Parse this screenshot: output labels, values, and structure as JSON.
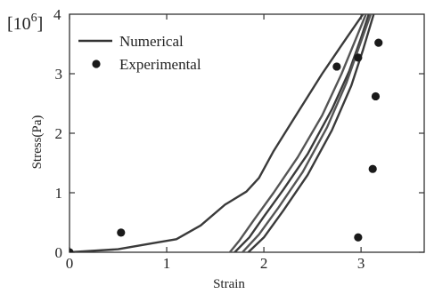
{
  "chart_data": {
    "type": "scatter",
    "title": "",
    "xlabel": "Strain",
    "ylabel": "Stress(Pa)",
    "y_multiplier_label": "[10^6]",
    "y_extra_tick_label": "4",
    "xlim": [
      0,
      3.65
    ],
    "ylim": [
      0,
      4
    ],
    "x_ticks": [
      0,
      1,
      2,
      3
    ],
    "y_ticks": [
      0,
      1,
      2,
      3
    ],
    "grid": false,
    "legend_position": "top-left",
    "legend": [
      {
        "label": "Numerical",
        "marker": "line"
      },
      {
        "label": "Experimental",
        "marker": "dot"
      }
    ],
    "series": [
      {
        "name": "Numerical",
        "style": "line",
        "curves": [
          [
            [
              0,
              0
            ],
            [
              0.5,
              0.05
            ],
            [
              0.85,
              0.15
            ],
            [
              1.1,
              0.22
            ],
            [
              1.35,
              0.45
            ],
            [
              1.6,
              0.8
            ],
            [
              1.82,
              1.02
            ],
            [
              1.95,
              1.25
            ],
            [
              2.1,
              1.7
            ],
            [
              2.35,
              2.35
            ],
            [
              2.6,
              3.0
            ],
            [
              2.85,
              3.6
            ],
            [
              3.02,
              4.0
            ]
          ],
          [
            [
              1.65,
              0
            ],
            [
              1.75,
              0.2
            ],
            [
              1.9,
              0.55
            ],
            [
              2.1,
              1.0
            ],
            [
              2.35,
              1.6
            ],
            [
              2.6,
              2.3
            ],
            [
              2.8,
              3.0
            ],
            [
              2.95,
              3.6
            ],
            [
              3.05,
              4.0
            ]
          ],
          [
            [
              1.7,
              0
            ],
            [
              1.85,
              0.25
            ],
            [
              2.0,
              0.6
            ],
            [
              2.2,
              1.05
            ],
            [
              2.45,
              1.65
            ],
            [
              2.7,
              2.4
            ],
            [
              2.88,
              3.05
            ],
            [
              3.0,
              3.6
            ],
            [
              3.08,
              4.0
            ]
          ],
          [
            [
              1.78,
              0
            ],
            [
              1.95,
              0.3
            ],
            [
              2.15,
              0.75
            ],
            [
              2.4,
              1.35
            ],
            [
              2.65,
              2.1
            ],
            [
              2.85,
              2.85
            ],
            [
              2.98,
              3.45
            ],
            [
              3.1,
              4.0
            ]
          ],
          [
            [
              1.84,
              0
            ],
            [
              2.0,
              0.25
            ],
            [
              2.2,
              0.7
            ],
            [
              2.45,
              1.3
            ],
            [
              2.7,
              2.05
            ],
            [
              2.9,
              2.8
            ],
            [
              3.02,
              3.4
            ],
            [
              3.13,
              4.0
            ]
          ]
        ]
      },
      {
        "name": "Experimental",
        "style": "points",
        "points": [
          [
            0,
            0
          ],
          [
            0.53,
            0.33
          ],
          [
            2.75,
            3.12
          ],
          [
            2.97,
            3.27
          ],
          [
            3.18,
            3.52
          ],
          [
            3.15,
            2.62
          ],
          [
            3.12,
            1.4
          ],
          [
            2.97,
            0.25
          ]
        ]
      }
    ]
  }
}
